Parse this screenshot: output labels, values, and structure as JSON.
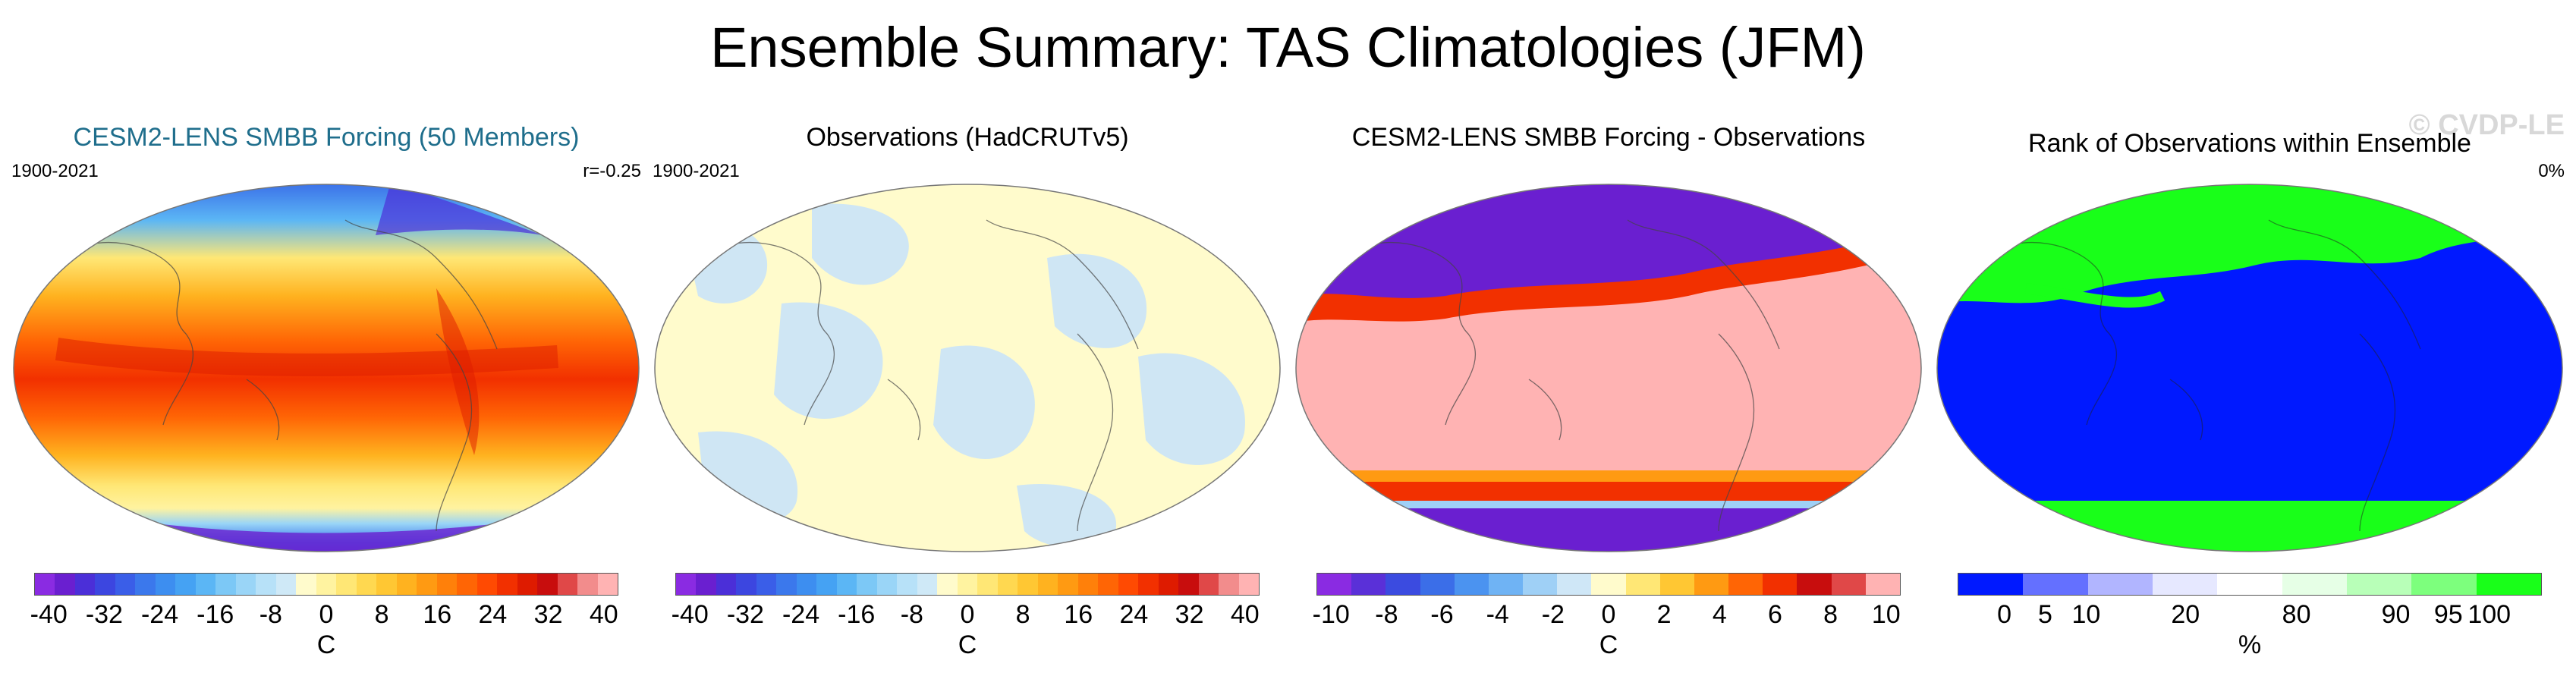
{
  "figure": {
    "title": "Ensemble Summary: TAS Climatologies (JFM)",
    "watermark": "© CVDP-LE"
  },
  "panels": [
    {
      "title": "CESM2-LENS SMBB Forcing (50 Members)",
      "title_color": "#1f6e8c",
      "left_label": "1900-2021",
      "right_label": "r=-0.25",
      "map_style": "temperature",
      "colorbar": {
        "colors": [
          "#8a2be2",
          "#6a1fd0",
          "#4b2fd8",
          "#3c46e0",
          "#3a5ee8",
          "#3b78ec",
          "#3d8ef0",
          "#45a2f3",
          "#5bb6f5",
          "#7cc8f6",
          "#9ad5f7",
          "#b7e1f8",
          "#cfe9f7",
          "#fffbcc",
          "#fff3a0",
          "#ffe775",
          "#ffd850",
          "#ffc733",
          "#ffb21f",
          "#ff9a12",
          "#ff800a",
          "#ff6505",
          "#ff4a02",
          "#f23000",
          "#de1b00",
          "#c80d0d",
          "#e04848",
          "#f28c8c",
          "#ffb3b3"
        ],
        "ticks": [
          "-40",
          "-32",
          "-24",
          "-16",
          "-8",
          "0",
          "8",
          "16",
          "24",
          "32",
          "40"
        ],
        "unit": "C"
      }
    },
    {
      "title": "Observations (HadCRUTv5)",
      "title_color": "#000000",
      "left_label": "1900-2021",
      "right_label": "",
      "map_style": "observations",
      "colorbar": {
        "colors": [
          "#8a2be2",
          "#6a1fd0",
          "#4b2fd8",
          "#3c46e0",
          "#3a5ee8",
          "#3b78ec",
          "#3d8ef0",
          "#45a2f3",
          "#5bb6f5",
          "#7cc8f6",
          "#9ad5f7",
          "#b7e1f8",
          "#cfe9f7",
          "#fffbcc",
          "#fff3a0",
          "#ffe775",
          "#ffd850",
          "#ffc733",
          "#ffb21f",
          "#ff9a12",
          "#ff800a",
          "#ff6505",
          "#ff4a02",
          "#f23000",
          "#de1b00",
          "#c80d0d",
          "#e04848",
          "#f28c8c",
          "#ffb3b3"
        ],
        "ticks": [
          "-40",
          "-32",
          "-24",
          "-16",
          "-8",
          "0",
          "8",
          "16",
          "24",
          "32",
          "40"
        ],
        "unit": "C"
      }
    },
    {
      "title": "CESM2-LENS SMBB Forcing - Observations",
      "title_color": "#000000",
      "left_label": "",
      "right_label": "",
      "map_style": "difference",
      "colorbar": {
        "colors": [
          "#8a2be2",
          "#5a30d8",
          "#3b4be0",
          "#3b6ee8",
          "#4b93f0",
          "#6fb3f4",
          "#9fd0f6",
          "#cfe7f7",
          "#fffbcc",
          "#ffe775",
          "#ffc733",
          "#ff9a12",
          "#ff6505",
          "#f23000",
          "#c80d0d",
          "#e04848",
          "#ffb3b3"
        ],
        "ticks": [
          "-10",
          "-8",
          "-6",
          "-4",
          "-2",
          "0",
          "2",
          "4",
          "6",
          "8",
          "10"
        ],
        "unit": "C"
      }
    },
    {
      "title": "Rank of Observations within Ensemble",
      "title_color": "#000000",
      "left_label": "",
      "right_label": "0%",
      "map_style": "rank",
      "colorbar": {
        "colors": [
          "#0019ff",
          "#6470ff",
          "#b1b5ff",
          "#e6e8ff",
          "#ffffff",
          "#e6ffe6",
          "#b8ffb8",
          "#7dff7d",
          "#19ff19"
        ],
        "ticks": [
          "0",
          "5",
          "10",
          "20",
          "80",
          "90",
          "95",
          "100"
        ],
        "unit": "%"
      }
    }
  ]
}
